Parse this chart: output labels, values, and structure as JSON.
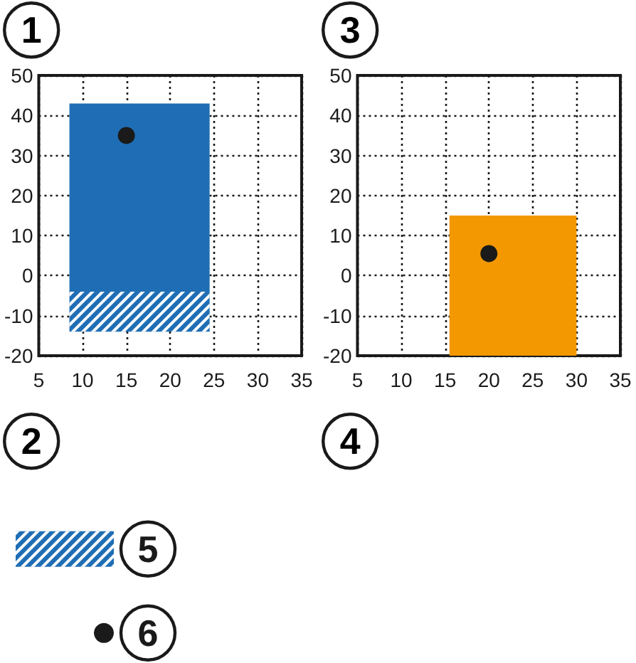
{
  "chart_data": [
    {
      "type": "histogram",
      "xlim": [
        5,
        35
      ],
      "ylim": [
        -20,
        50
      ],
      "xticks": [
        5,
        10,
        15,
        20,
        25,
        30,
        35
      ],
      "yticks": [
        -20,
        -10,
        0,
        10,
        20,
        30,
        40,
        50
      ],
      "grid": true,
      "legend": "bottom left",
      "annotations": [
        "1",
        "2"
      ],
      "series": [
        {
          "color": "#1f6eb5",
          "bins": [
            8.5,
            24.5
          ],
          "values": [
            47
          ],
          "base": [
            -4
          ]
        },
        {
          "name": "5",
          "color": "#1f6eb5",
          "bins": [
            8.5,
            24.5
          ],
          "values": [
            10
          ],
          "base": [
            -14
          ]
        },
        {
          "type": "scatter",
          "name": "6",
          "color": "#1a1a1a",
          "marker": "circle",
          "x": [
            15
          ],
          "values": [
            35
          ]
        }
      ]
    },
    {
      "type": "histogram",
      "xlim": [
        5,
        35
      ],
      "ylim": [
        -20,
        50
      ],
      "xticks": [
        5,
        10,
        15,
        20,
        25,
        30,
        35
      ],
      "yticks": [
        -20,
        -10,
        0,
        10,
        20,
        30,
        40,
        50
      ],
      "grid": true,
      "annotations": [
        "3",
        "4"
      ],
      "series": [
        {
          "color": "#f39800",
          "bins": [
            15.5,
            30
          ],
          "values": [
            35
          ],
          "base": [
            -20
          ]
        },
        {
          "type": "scatter",
          "color": "#1a1a1a",
          "marker": "circle",
          "x": [
            20
          ],
          "values": [
            5.5
          ]
        }
      ]
    }
  ]
}
